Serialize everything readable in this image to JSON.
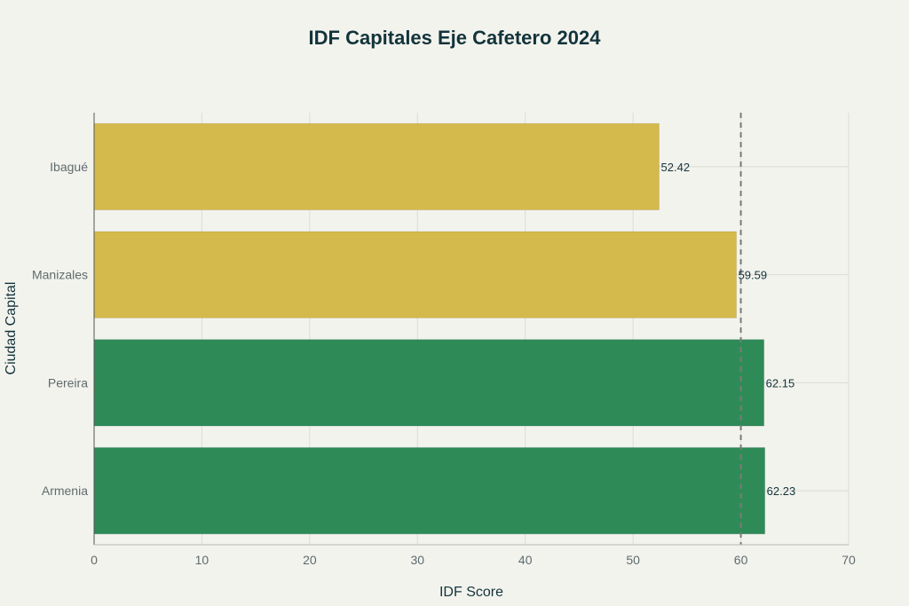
{
  "chart_data": {
    "type": "bar",
    "orientation": "horizontal",
    "title": "IDF Capitales Eje Cafetero 2024",
    "xlabel": "IDF Score",
    "ylabel": "Ciudad Capital",
    "xlim": [
      0,
      70
    ],
    "xticks": [
      0,
      10,
      20,
      30,
      40,
      50,
      60,
      70
    ],
    "categories": [
      "Ibagué",
      "Manizales",
      "Pereira",
      "Armenia"
    ],
    "values": [
      52.42,
      59.59,
      62.15,
      62.23
    ],
    "value_labels": [
      "52.42",
      "59.59",
      "62.15",
      "62.23"
    ],
    "bar_colors": [
      "#d4b94c",
      "#d4b94c",
      "#2e8b57",
      "#2e8b57"
    ],
    "reference_line": {
      "x": 60,
      "style": "dashed",
      "color": "#7a7a7a"
    },
    "grid": true,
    "legend": "none"
  }
}
